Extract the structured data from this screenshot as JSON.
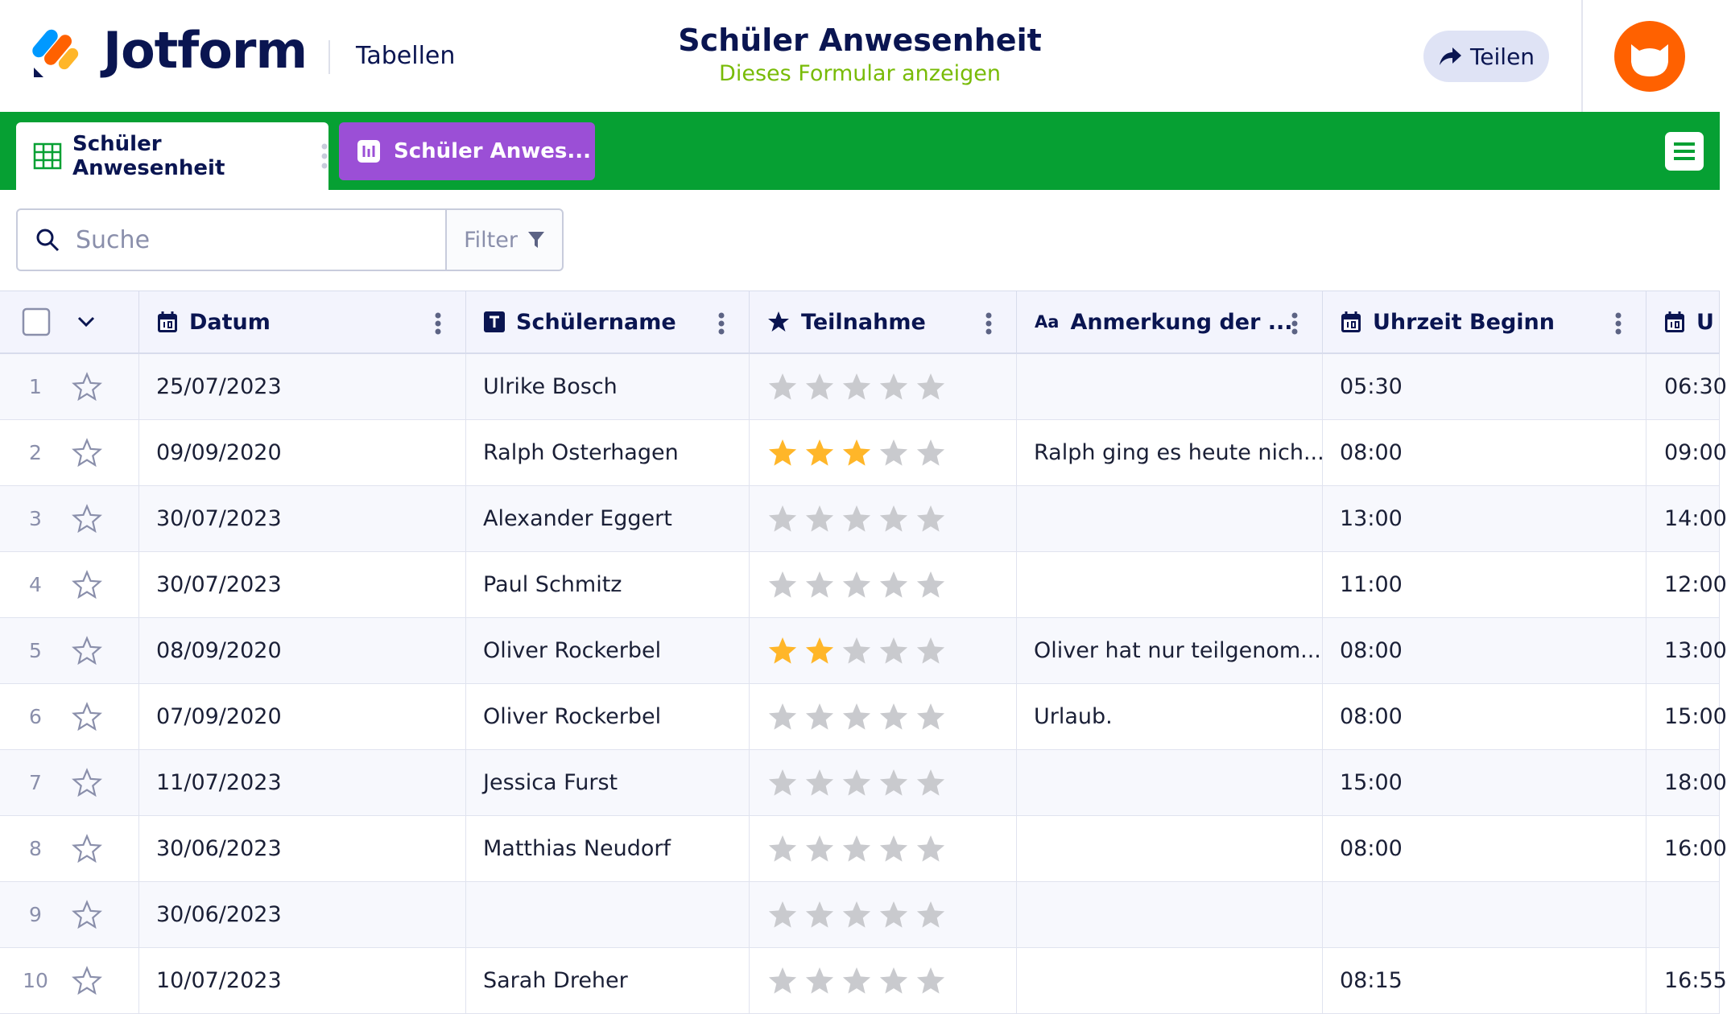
{
  "header": {
    "logo": "Jotform",
    "section": "Tabellen",
    "title": "Schüler Anwesenheit",
    "subtitle": "Dieses Formular anzeigen",
    "share": "Teilen"
  },
  "tabs": [
    "Schüler Anwesenheit",
    "Schüler Anwes..."
  ],
  "search": {
    "placeholder": "Suche",
    "filter": "Filter"
  },
  "table": {
    "columns": [
      {
        "label": "Datum"
      },
      {
        "label": "Schülername"
      },
      {
        "label": "Teilnahme"
      },
      {
        "icon_label": "Aa",
        "label": "Anmerkung der ..."
      },
      {
        "label": "Uhrzeit Beginn"
      },
      {
        "label": "U"
      }
    ],
    "rows": [
      {
        "number": 1,
        "date": "25/07/2023",
        "name": "Ulrike Bosch",
        "rating": 0,
        "note": null,
        "start": "05:30",
        "end": "06:30"
      },
      {
        "number": 2,
        "date": "09/09/2020",
        "name": "Ralph Osterhagen",
        "rating": 3,
        "note": "Ralph ging es heute nich...",
        "start": "08:00",
        "end": "09:00"
      },
      {
        "number": 3,
        "date": "30/07/2023",
        "name": "Alexander Eggert",
        "rating": 0,
        "note": null,
        "start": "13:00",
        "end": "14:00"
      },
      {
        "number": 4,
        "date": "30/07/2023",
        "name": "Paul Schmitz",
        "rating": 0,
        "note": null,
        "start": "11:00",
        "end": "12:00"
      },
      {
        "number": 5,
        "date": "08/09/2020",
        "name": "Oliver Rockerbel",
        "rating": 2,
        "note": "Oliver hat nur teilgenom...",
        "start": "08:00",
        "end": "13:00"
      },
      {
        "number": 6,
        "date": "07/09/2020",
        "name": "Oliver Rockerbel",
        "rating": 0,
        "note": "Urlaub.",
        "start": "08:00",
        "end": "15:00"
      },
      {
        "number": 7,
        "date": "11/07/2023",
        "name": "Jessica Furst",
        "rating": 0,
        "note": null,
        "start": "15:00",
        "end": "18:00"
      },
      {
        "number": 8,
        "date": "30/06/2023",
        "name": "Matthias Neudorf",
        "rating": 0,
        "note": null,
        "start": "08:00",
        "end": "16:00"
      },
      {
        "number": 9,
        "date": "30/06/2023",
        "name": null,
        "rating": 0,
        "note": null,
        "start": null,
        "end": null
      },
      {
        "number": 10,
        "date": "10/07/2023",
        "name": "Sarah Dreher",
        "rating": 0,
        "note": null,
        "start": "08:15",
        "end": "16:55"
      }
    ]
  }
}
